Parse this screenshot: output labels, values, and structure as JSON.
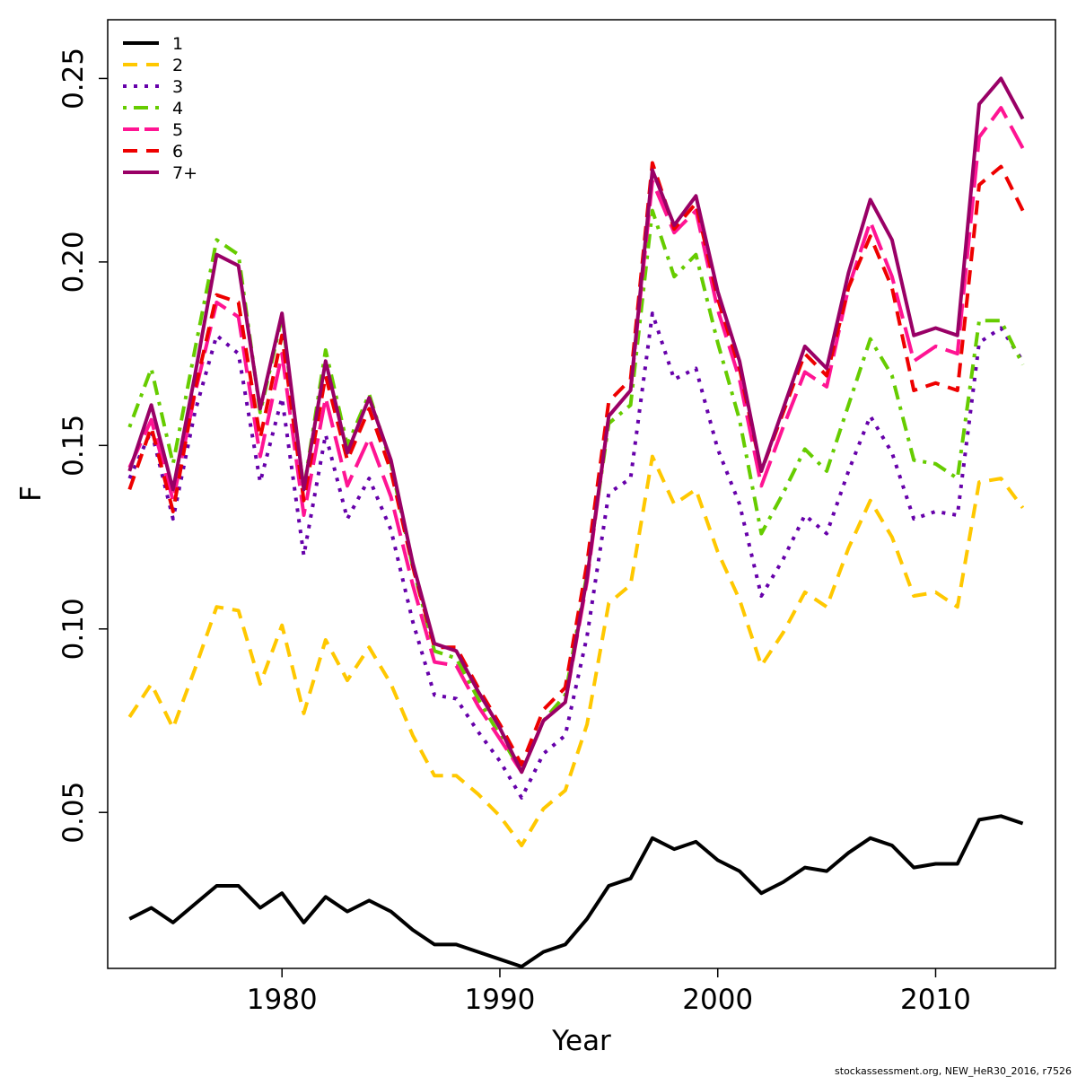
{
  "chart_data": {
    "type": "line",
    "title": "",
    "xlabel": "Year",
    "ylabel": "F",
    "xlim": [
      1972,
      2015.5
    ],
    "ylim": [
      0.0075,
      0.266
    ],
    "grid": false,
    "legend_position": "top-left",
    "x_ticks": [
      1980,
      1990,
      2000,
      2010
    ],
    "y_ticks": [
      0.05,
      0.1,
      0.15,
      0.2,
      0.25
    ],
    "y_tick_labels": [
      "0.05",
      "0.10",
      "0.15",
      "0.20",
      "0.25"
    ],
    "x": [
      1973,
      1974,
      1975,
      1976,
      1977,
      1978,
      1979,
      1980,
      1981,
      1982,
      1983,
      1984,
      1985,
      1986,
      1987,
      1988,
      1989,
      1990,
      1991,
      1992,
      1993,
      1994,
      1995,
      1996,
      1997,
      1998,
      1999,
      2000,
      2001,
      2002,
      2003,
      2004,
      2005,
      2006,
      2007,
      2008,
      2009,
      2010,
      2011,
      2012,
      2013,
      2014
    ],
    "series": [
      {
        "name": "1",
        "color": "#000000",
        "dash": "solid",
        "values": [
          0.021,
          0.024,
          0.02,
          0.025,
          0.03,
          0.03,
          0.024,
          0.028,
          0.02,
          0.027,
          0.023,
          0.026,
          0.023,
          0.018,
          0.014,
          0.014,
          0.012,
          0.01,
          0.008,
          0.012,
          0.014,
          0.021,
          0.03,
          0.032,
          0.043,
          0.04,
          0.042,
          0.037,
          0.034,
          0.028,
          0.031,
          0.035,
          0.034,
          0.039,
          0.043,
          0.041,
          0.035,
          0.036,
          0.036,
          0.048,
          0.049,
          0.047
        ]
      },
      {
        "name": "2",
        "color": "#FFC800",
        "dash": "dashed",
        "values": [
          0.076,
          0.085,
          0.073,
          0.089,
          0.106,
          0.105,
          0.085,
          0.101,
          0.077,
          0.097,
          0.086,
          0.095,
          0.085,
          0.071,
          0.06,
          0.06,
          0.055,
          0.049,
          0.041,
          0.051,
          0.056,
          0.074,
          0.107,
          0.112,
          0.147,
          0.134,
          0.138,
          0.121,
          0.108,
          0.09,
          0.099,
          0.11,
          0.106,
          0.122,
          0.135,
          0.125,
          0.109,
          0.11,
          0.106,
          0.14,
          0.141,
          0.133
        ]
      },
      {
        "name": "3",
        "color": "#6600AA",
        "dash": "dotted",
        "values": [
          0.141,
          0.154,
          0.13,
          0.159,
          0.18,
          0.175,
          0.14,
          0.163,
          0.12,
          0.153,
          0.13,
          0.141,
          0.127,
          0.102,
          0.082,
          0.081,
          0.072,
          0.064,
          0.054,
          0.066,
          0.071,
          0.098,
          0.137,
          0.141,
          0.186,
          0.168,
          0.171,
          0.149,
          0.134,
          0.109,
          0.119,
          0.131,
          0.126,
          0.143,
          0.158,
          0.148,
          0.13,
          0.132,
          0.131,
          0.178,
          0.182,
          0.173
        ]
      },
      {
        "name": "4",
        "color": "#66CC00",
        "dash": "dashdot",
        "values": [
          0.155,
          0.171,
          0.145,
          0.176,
          0.206,
          0.202,
          0.159,
          0.185,
          0.138,
          0.176,
          0.15,
          0.164,
          0.145,
          0.117,
          0.094,
          0.092,
          0.081,
          0.071,
          0.061,
          0.075,
          0.082,
          0.115,
          0.156,
          0.161,
          0.214,
          0.196,
          0.202,
          0.178,
          0.157,
          0.126,
          0.137,
          0.149,
          0.143,
          0.161,
          0.179,
          0.169,
          0.146,
          0.145,
          0.141,
          0.184,
          0.184,
          0.172
        ]
      },
      {
        "name": "5",
        "color": "#FF1493",
        "dash": "longdash",
        "values": [
          0.144,
          0.157,
          0.135,
          0.164,
          0.189,
          0.185,
          0.147,
          0.175,
          0.131,
          0.163,
          0.139,
          0.152,
          0.136,
          0.112,
          0.091,
          0.09,
          0.079,
          0.07,
          0.061,
          0.075,
          0.08,
          0.113,
          0.158,
          0.165,
          0.222,
          0.208,
          0.214,
          0.187,
          0.168,
          0.139,
          0.155,
          0.17,
          0.166,
          0.193,
          0.211,
          0.196,
          0.173,
          0.177,
          0.175,
          0.234,
          0.242,
          0.231
        ]
      },
      {
        "name": "6",
        "color": "#EE0000",
        "dash": "dashed",
        "values": [
          0.138,
          0.155,
          0.132,
          0.165,
          0.191,
          0.189,
          0.152,
          0.18,
          0.135,
          0.169,
          0.146,
          0.16,
          0.143,
          0.117,
          0.095,
          0.095,
          0.084,
          0.074,
          0.063,
          0.078,
          0.084,
          0.118,
          0.162,
          0.168,
          0.227,
          0.209,
          0.216,
          0.19,
          0.171,
          0.143,
          0.159,
          0.175,
          0.169,
          0.193,
          0.207,
          0.193,
          0.165,
          0.167,
          0.165,
          0.221,
          0.226,
          0.214
        ]
      },
      {
        "name": "7+",
        "color": "#990066",
        "dash": "solid",
        "values": [
          0.143,
          0.161,
          0.138,
          0.169,
          0.202,
          0.199,
          0.16,
          0.186,
          0.138,
          0.173,
          0.148,
          0.163,
          0.146,
          0.118,
          0.096,
          0.094,
          0.083,
          0.073,
          0.061,
          0.075,
          0.08,
          0.114,
          0.158,
          0.165,
          0.225,
          0.21,
          0.218,
          0.192,
          0.173,
          0.143,
          0.16,
          0.177,
          0.171,
          0.197,
          0.217,
          0.206,
          0.18,
          0.182,
          0.18,
          0.243,
          0.25,
          0.239
        ]
      }
    ]
  },
  "footer": "stockassessment.org, NEW_HeR30_2016, r7526"
}
